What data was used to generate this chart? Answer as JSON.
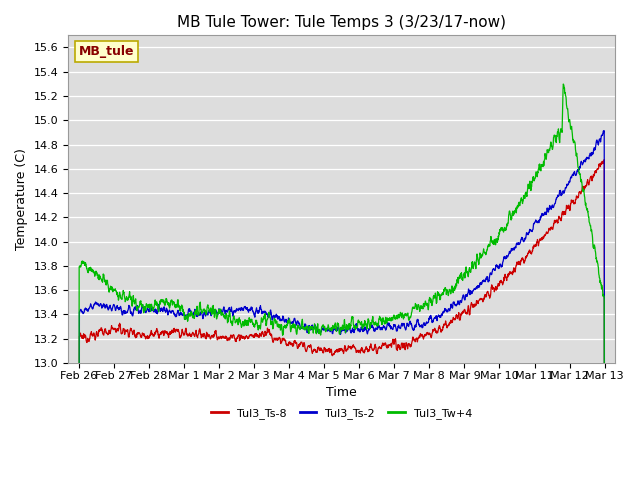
{
  "title": "MB Tule Tower: Tule Temps 3 (3/23/17-now)",
  "xlabel": "Time",
  "ylabel": "Temperature (C)",
  "ylim": [
    13.0,
    15.7
  ],
  "tick_labels": [
    "Feb 26",
    "Feb 27",
    "Feb 28",
    "Mar 1",
    "Mar 2",
    "Mar 3",
    "Mar 4",
    "Mar 5",
    "Mar 6",
    "Mar 7",
    "Mar 8",
    "Mar 9",
    "Mar 10",
    "Mar 11",
    "Mar 12",
    "Mar 13"
  ],
  "legend_labels": [
    "Tul3_Ts-8",
    "Tul3_Ts-2",
    "Tul3_Tw+4"
  ],
  "line_colors": [
    "#cc0000",
    "#0000cc",
    "#00bb00"
  ],
  "legend_box_label": "MB_tule",
  "legend_box_color": "#ffffcc",
  "legend_box_border": "#bbaa00",
  "fig_bg_color": "#ffffff",
  "plot_bg_color": "#dddddd",
  "grid_color": "#ffffff",
  "title_fontsize": 11,
  "axis_fontsize": 9,
  "tick_fontsize": 8
}
